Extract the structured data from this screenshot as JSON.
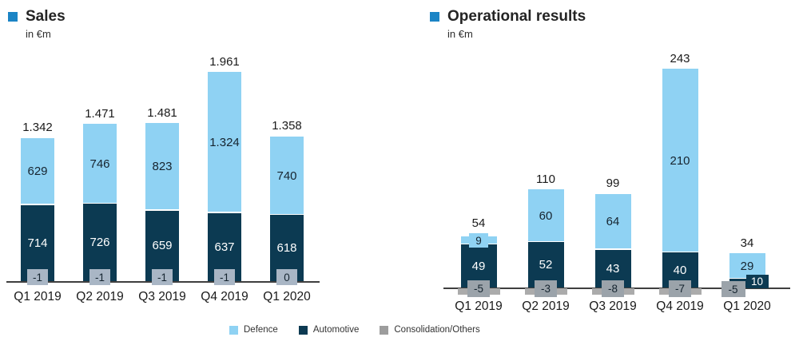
{
  "page": {
    "background": "#ffffff"
  },
  "header_marker_color": "#1B84C5",
  "axis_color": "#3f3f3f",
  "legend": {
    "items": [
      {
        "label": "Defence",
        "color": "#8FD2F3"
      },
      {
        "label": "Automotive",
        "color": "#0C3A52"
      },
      {
        "label": "Consolidation/Others",
        "color": "#9D9D9D"
      }
    ]
  },
  "chart_data": [
    {
      "type": "bar",
      "stacked": true,
      "title": "Sales",
      "subtitle": "in €m",
      "grid": false,
      "legend_position": "bottom",
      "categories": [
        "Q1 2019",
        "Q2 2019",
        "Q3 2019",
        "Q4 2019",
        "Q1 2020"
      ],
      "series": [
        {
          "name": "Defence",
          "color": "#8FD2F3",
          "values": [
            629,
            746,
            823,
            1324,
            740
          ],
          "labels": [
            "629",
            "746",
            "823",
            "1.324",
            "740"
          ]
        },
        {
          "name": "Automotive",
          "color": "#0C3A52",
          "values": [
            714,
            726,
            659,
            637,
            618
          ],
          "labels": [
            "714",
            "726",
            "659",
            "637",
            "618"
          ]
        },
        {
          "name": "Consolidation/Others",
          "color": "#9D9D9D",
          "values": [
            -1,
            -1,
            -1,
            -1,
            0
          ],
          "labels": [
            "-1",
            "-1",
            "-1",
            "-1",
            "0"
          ]
        }
      ],
      "totals": {
        "values": [
          1342,
          1471,
          1481,
          1961,
          1358
        ],
        "labels": [
          "1.342",
          "1.471",
          "1.481",
          "1.961",
          "1.358"
        ]
      }
    },
    {
      "type": "bar",
      "stacked": true,
      "title": "Operational results",
      "subtitle": "in €m",
      "grid": false,
      "legend_position": "bottom",
      "categories": [
        "Q1 2019",
        "Q2 2019",
        "Q3 2019",
        "Q4 2019",
        "Q1 2020"
      ],
      "series": [
        {
          "name": "Defence",
          "color": "#8FD2F3",
          "values": [
            9,
            60,
            64,
            210,
            29
          ],
          "labels": [
            "9",
            "60",
            "64",
            "210",
            "29"
          ]
        },
        {
          "name": "Automotive",
          "color": "#0C3A52",
          "values": [
            49,
            52,
            43,
            40,
            10
          ],
          "labels": [
            "49",
            "52",
            "43",
            "40",
            "10"
          ]
        },
        {
          "name": "Consolidation/Others",
          "color": "#9D9D9D",
          "values": [
            -5,
            -3,
            -8,
            -7,
            -5
          ],
          "labels": [
            "-5",
            "-3",
            "-8",
            "-7",
            "-5"
          ]
        }
      ],
      "totals": {
        "values": [
          54,
          110,
          99,
          243,
          34
        ],
        "labels": [
          "54",
          "110",
          "99",
          "243",
          "34"
        ]
      }
    }
  ]
}
